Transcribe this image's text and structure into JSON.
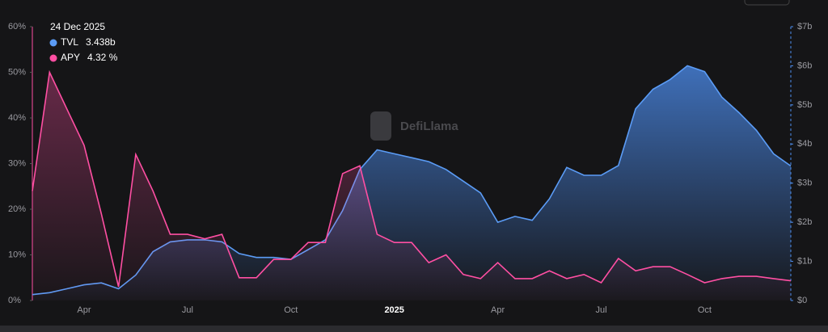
{
  "chart_data": {
    "type": "line",
    "watermark": "DefiLlama",
    "tooltip": {
      "date": "24 Dec 2025",
      "items": [
        {
          "name": "TVL",
          "value": "3.438b"
        },
        {
          "name": "APY",
          "value": "4.32 %"
        }
      ]
    },
    "categories": [
      null,
      null,
      null,
      "Apr",
      null,
      null,
      null,
      null,
      null,
      "Jul",
      null,
      null,
      null,
      null,
      null,
      "Oct",
      null,
      null,
      null,
      null,
      null,
      "2025",
      null,
      null,
      null,
      null,
      null,
      "Apr",
      null,
      null,
      null,
      null,
      null,
      "Jul",
      null,
      null,
      null,
      null,
      null,
      "Oct",
      null,
      null,
      null,
      null,
      null
    ],
    "series": [
      {
        "name": "TVL",
        "color": "#5b9cf6",
        "axis": "y2",
        "area": true,
        "values": [
          0.15,
          0.2,
          0.3,
          0.4,
          0.45,
          0.3,
          0.65,
          1.25,
          1.5,
          1.55,
          1.55,
          1.5,
          1.2,
          1.1,
          1.1,
          1.05,
          1.3,
          1.55,
          2.3,
          3.35,
          3.85,
          3.75,
          3.65,
          3.55,
          3.35,
          3.05,
          2.75,
          2.0,
          2.15,
          2.05,
          2.6,
          3.4,
          3.2,
          3.2,
          3.45,
          4.9,
          5.4,
          5.65,
          6.0,
          5.85,
          5.2,
          4.8,
          4.35,
          3.75,
          3.438
        ]
      },
      {
        "name": "APY",
        "color": "#ff4fa3",
        "axis": "y",
        "area": true,
        "values": [
          24,
          50,
          42,
          34,
          19,
          3,
          32,
          24,
          14.5,
          14.5,
          13.5,
          14.5,
          5,
          5,
          9,
          9,
          12.7,
          12.7,
          27.8,
          29.5,
          14.5,
          12.7,
          12.7,
          8.3,
          10,
          5.7,
          4.8,
          8.3,
          4.8,
          4.8,
          6.5,
          4.8,
          5.7,
          3.9,
          9.2,
          6.5,
          7.4,
          7.4,
          5.7,
          3.9,
          4.8,
          5.3,
          5.3,
          4.8,
          4.32
        ]
      }
    ],
    "ylim": [
      0,
      60
    ],
    "yticks": [
      {
        "value": 0,
        "label": "0%"
      },
      {
        "value": 10,
        "label": "10%"
      },
      {
        "value": 20,
        "label": "20%"
      },
      {
        "value": 30,
        "label": "30%"
      },
      {
        "value": 40,
        "label": "40%"
      },
      {
        "value": 50,
        "label": "50%"
      },
      {
        "value": 60,
        "label": "60%"
      }
    ],
    "y2lim": [
      0,
      7
    ],
    "y2ticks": [
      {
        "value": 0,
        "label": "$0"
      },
      {
        "value": 1,
        "label": "$1b"
      },
      {
        "value": 2,
        "label": "$2b"
      },
      {
        "value": 3,
        "label": "$3b"
      },
      {
        "value": 4,
        "label": "$4b"
      },
      {
        "value": 5,
        "label": "$5b"
      },
      {
        "value": 6,
        "label": "$6b"
      },
      {
        "value": 7,
        "label": "$7b"
      }
    ]
  }
}
